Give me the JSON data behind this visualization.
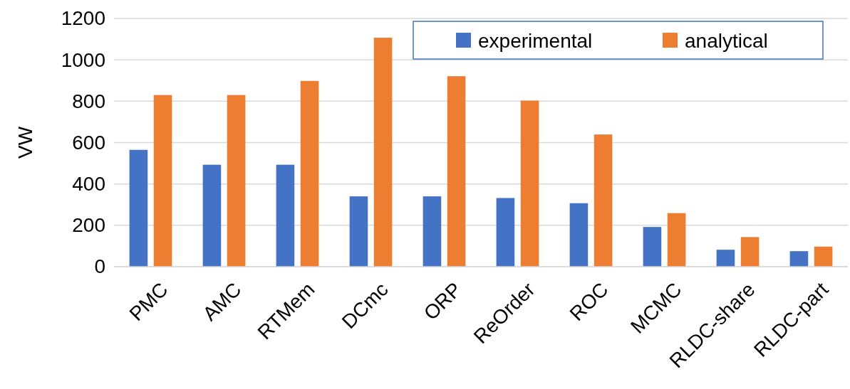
{
  "chart_data": {
    "type": "bar",
    "ylabel": "VW",
    "categories": [
      "PMC",
      "AMC",
      "RTMem",
      "DCmc",
      "ORP",
      "ReOrder",
      "ROC",
      "MCMC",
      "RLDC-share",
      "RLDC-part"
    ],
    "series": [
      {
        "name": "experimental",
        "color": "#4472c4",
        "values": [
          565,
          493,
          493,
          340,
          340,
          332,
          307,
          192,
          82,
          75
        ]
      },
      {
        "name": "analytical",
        "color": "#ed7d31",
        "values": [
          830,
          830,
          898,
          1107,
          921,
          803,
          639,
          259,
          143,
          97
        ]
      }
    ],
    "ylim": [
      0,
      1200
    ],
    "yticks": [
      0,
      200,
      400,
      600,
      800,
      1000,
      1200
    ],
    "grid": "y",
    "legend": "top right"
  }
}
